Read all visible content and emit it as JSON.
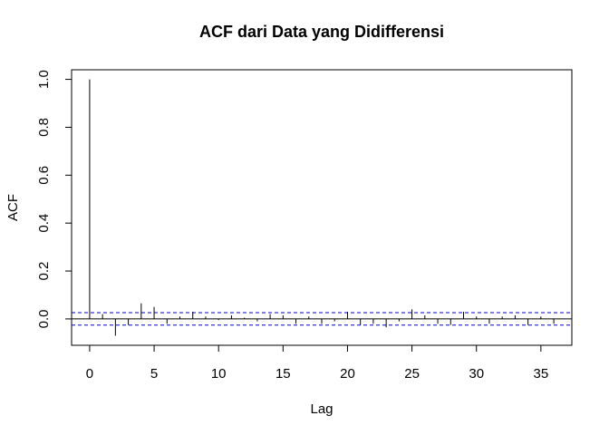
{
  "chart_data": {
    "type": "acf",
    "title": "ACF dari Data yang Didifferensi",
    "xlabel": "Lag",
    "ylabel": "ACF",
    "xlim": [
      -1.4,
      37.4
    ],
    "ylim": [
      -0.11,
      1.04
    ],
    "xticks": [
      0,
      5,
      10,
      15,
      20,
      25,
      30,
      35
    ],
    "yticks": [
      0.0,
      0.2,
      0.4,
      0.6,
      0.8,
      1.0
    ],
    "xtick_labels": [
      "0",
      "5",
      "10",
      "15",
      "20",
      "25",
      "30",
      "35"
    ],
    "ytick_labels": [
      "0.0",
      "0.2",
      "0.4",
      "0.6",
      "0.8",
      "1.0"
    ],
    "confidence_bound": 0.026,
    "confidence_line_color": "#0000CD",
    "line_color": "#000000",
    "lags": [
      0,
      1,
      2,
      3,
      4,
      5,
      6,
      7,
      8,
      9,
      10,
      11,
      12,
      13,
      14,
      15,
      16,
      17,
      18,
      19,
      20,
      21,
      22,
      23,
      24,
      25,
      26,
      27,
      28,
      29,
      30,
      31,
      32,
      33,
      34,
      35,
      36
    ],
    "values": [
      1.0,
      0.02,
      -0.07,
      -0.025,
      0.065,
      0.05,
      -0.02,
      0.01,
      0.03,
      0.01,
      -0.005,
      0.015,
      0.005,
      -0.01,
      0.02,
      0.015,
      -0.02,
      0.01,
      -0.02,
      -0.01,
      0.03,
      -0.025,
      -0.02,
      -0.035,
      -0.01,
      0.04,
      0.015,
      -0.02,
      -0.025,
      0.03,
      0.01,
      -0.02,
      0.01,
      0.015,
      -0.025,
      0.01,
      -0.02
    ],
    "grid": false
  }
}
